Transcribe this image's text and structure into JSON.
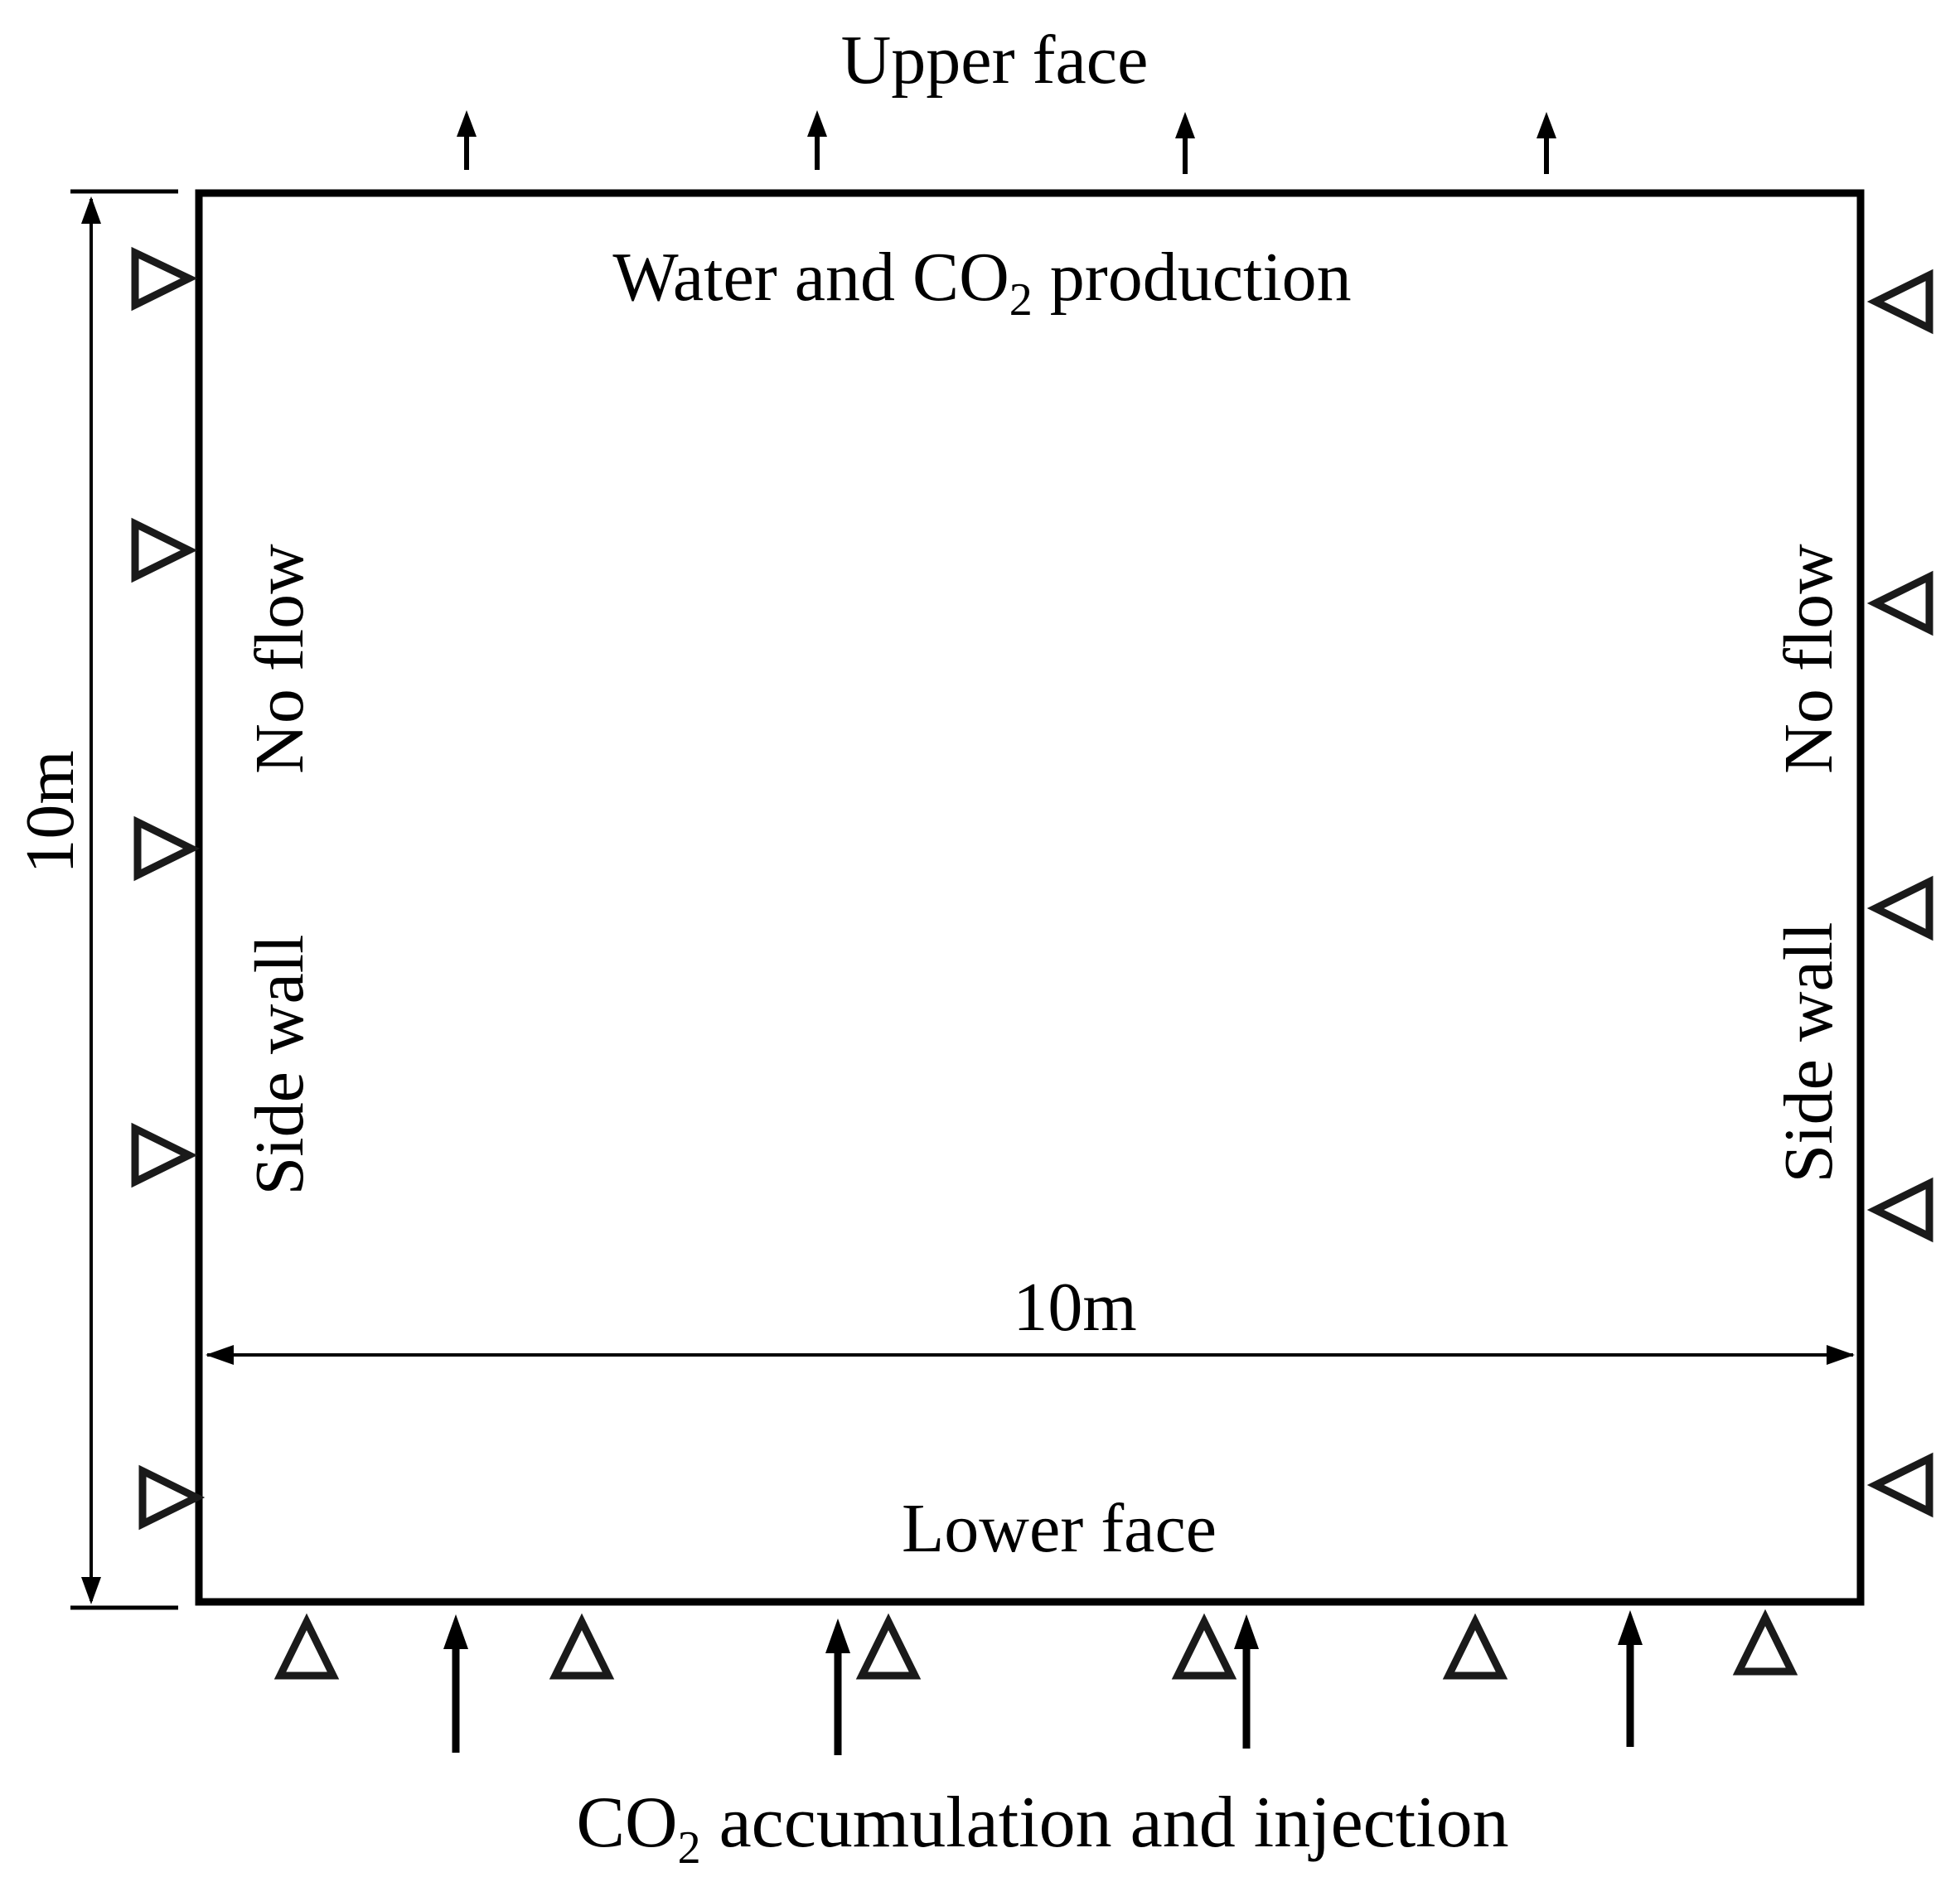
{
  "labels": {
    "upper_face": "Upper face",
    "production_prefix": "Water and CO",
    "production_sub": "2",
    "production_suffix": " production",
    "left_no_flow": "No flow",
    "left_side_wall": "Side wall",
    "right_no_flow": "No flow",
    "right_side_wall": "Side wall",
    "height_dimension": "10m",
    "width_dimension": "10m",
    "lower_face": "Lower face",
    "injection_prefix": "CO",
    "injection_sub": "2",
    "injection_suffix": " accumulation and injection"
  },
  "colors": {
    "stroke": "#000000",
    "support_triangle": "#1a1a1a",
    "background": "#ffffff"
  }
}
